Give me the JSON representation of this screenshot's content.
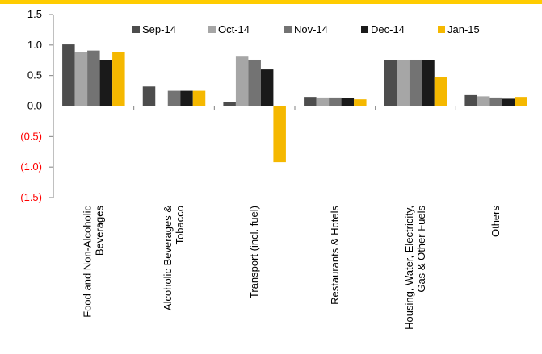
{
  "chart_data": {
    "type": "bar",
    "title": "",
    "xlabel": "",
    "ylabel": "",
    "ylim": [
      -1.5,
      1.5
    ],
    "yticks": [
      1.5,
      1.0,
      0.5,
      0.0,
      -0.5,
      -1.0,
      -1.5
    ],
    "ytick_labels": [
      "1.5",
      "1.0",
      "0.5",
      "0.0",
      "(0.5)",
      "(1.0)",
      "(1.5)"
    ],
    "negative_tick_color": "#ff0000",
    "legend_position": "top",
    "categories": [
      "Food and Non-Alcoholic Beverages",
      "Alcoholic Beverages & Tobacco",
      "Transport (incl. fuel)",
      "Restaurants & Hotels",
      "Housing, Water, Electricity, Gas & Other Fuels",
      "Others"
    ],
    "category_label_lines": [
      [
        "Food and Non-Alcoholic",
        "Beverages"
      ],
      [
        "Alcoholic Beverages &",
        "Tobacco"
      ],
      [
        "Transport (incl. fuel)"
      ],
      [
        "Restaurants & Hotels"
      ],
      [
        "Housing, Water, Electricity,",
        "Gas & Other Fuels"
      ],
      [
        "Others"
      ]
    ],
    "series": [
      {
        "name": "Sep-14",
        "color": "#4d4d4d",
        "values": [
          1.01,
          0.32,
          0.06,
          0.15,
          0.75,
          0.18
        ]
      },
      {
        "name": "Oct-14",
        "color": "#a6a6a6",
        "values": [
          0.89,
          0.0,
          0.81,
          0.14,
          0.75,
          0.16
        ]
      },
      {
        "name": "Nov-14",
        "color": "#737373",
        "values": [
          0.91,
          0.25,
          0.76,
          0.14,
          0.76,
          0.14
        ]
      },
      {
        "name": "Dec-14",
        "color": "#1a1a1a",
        "values": [
          0.75,
          0.25,
          0.6,
          0.13,
          0.75,
          0.12
        ]
      },
      {
        "name": "Jan-15",
        "color": "#f5b800",
        "values": [
          0.88,
          0.25,
          -0.92,
          0.11,
          0.47,
          0.15
        ]
      }
    ]
  }
}
